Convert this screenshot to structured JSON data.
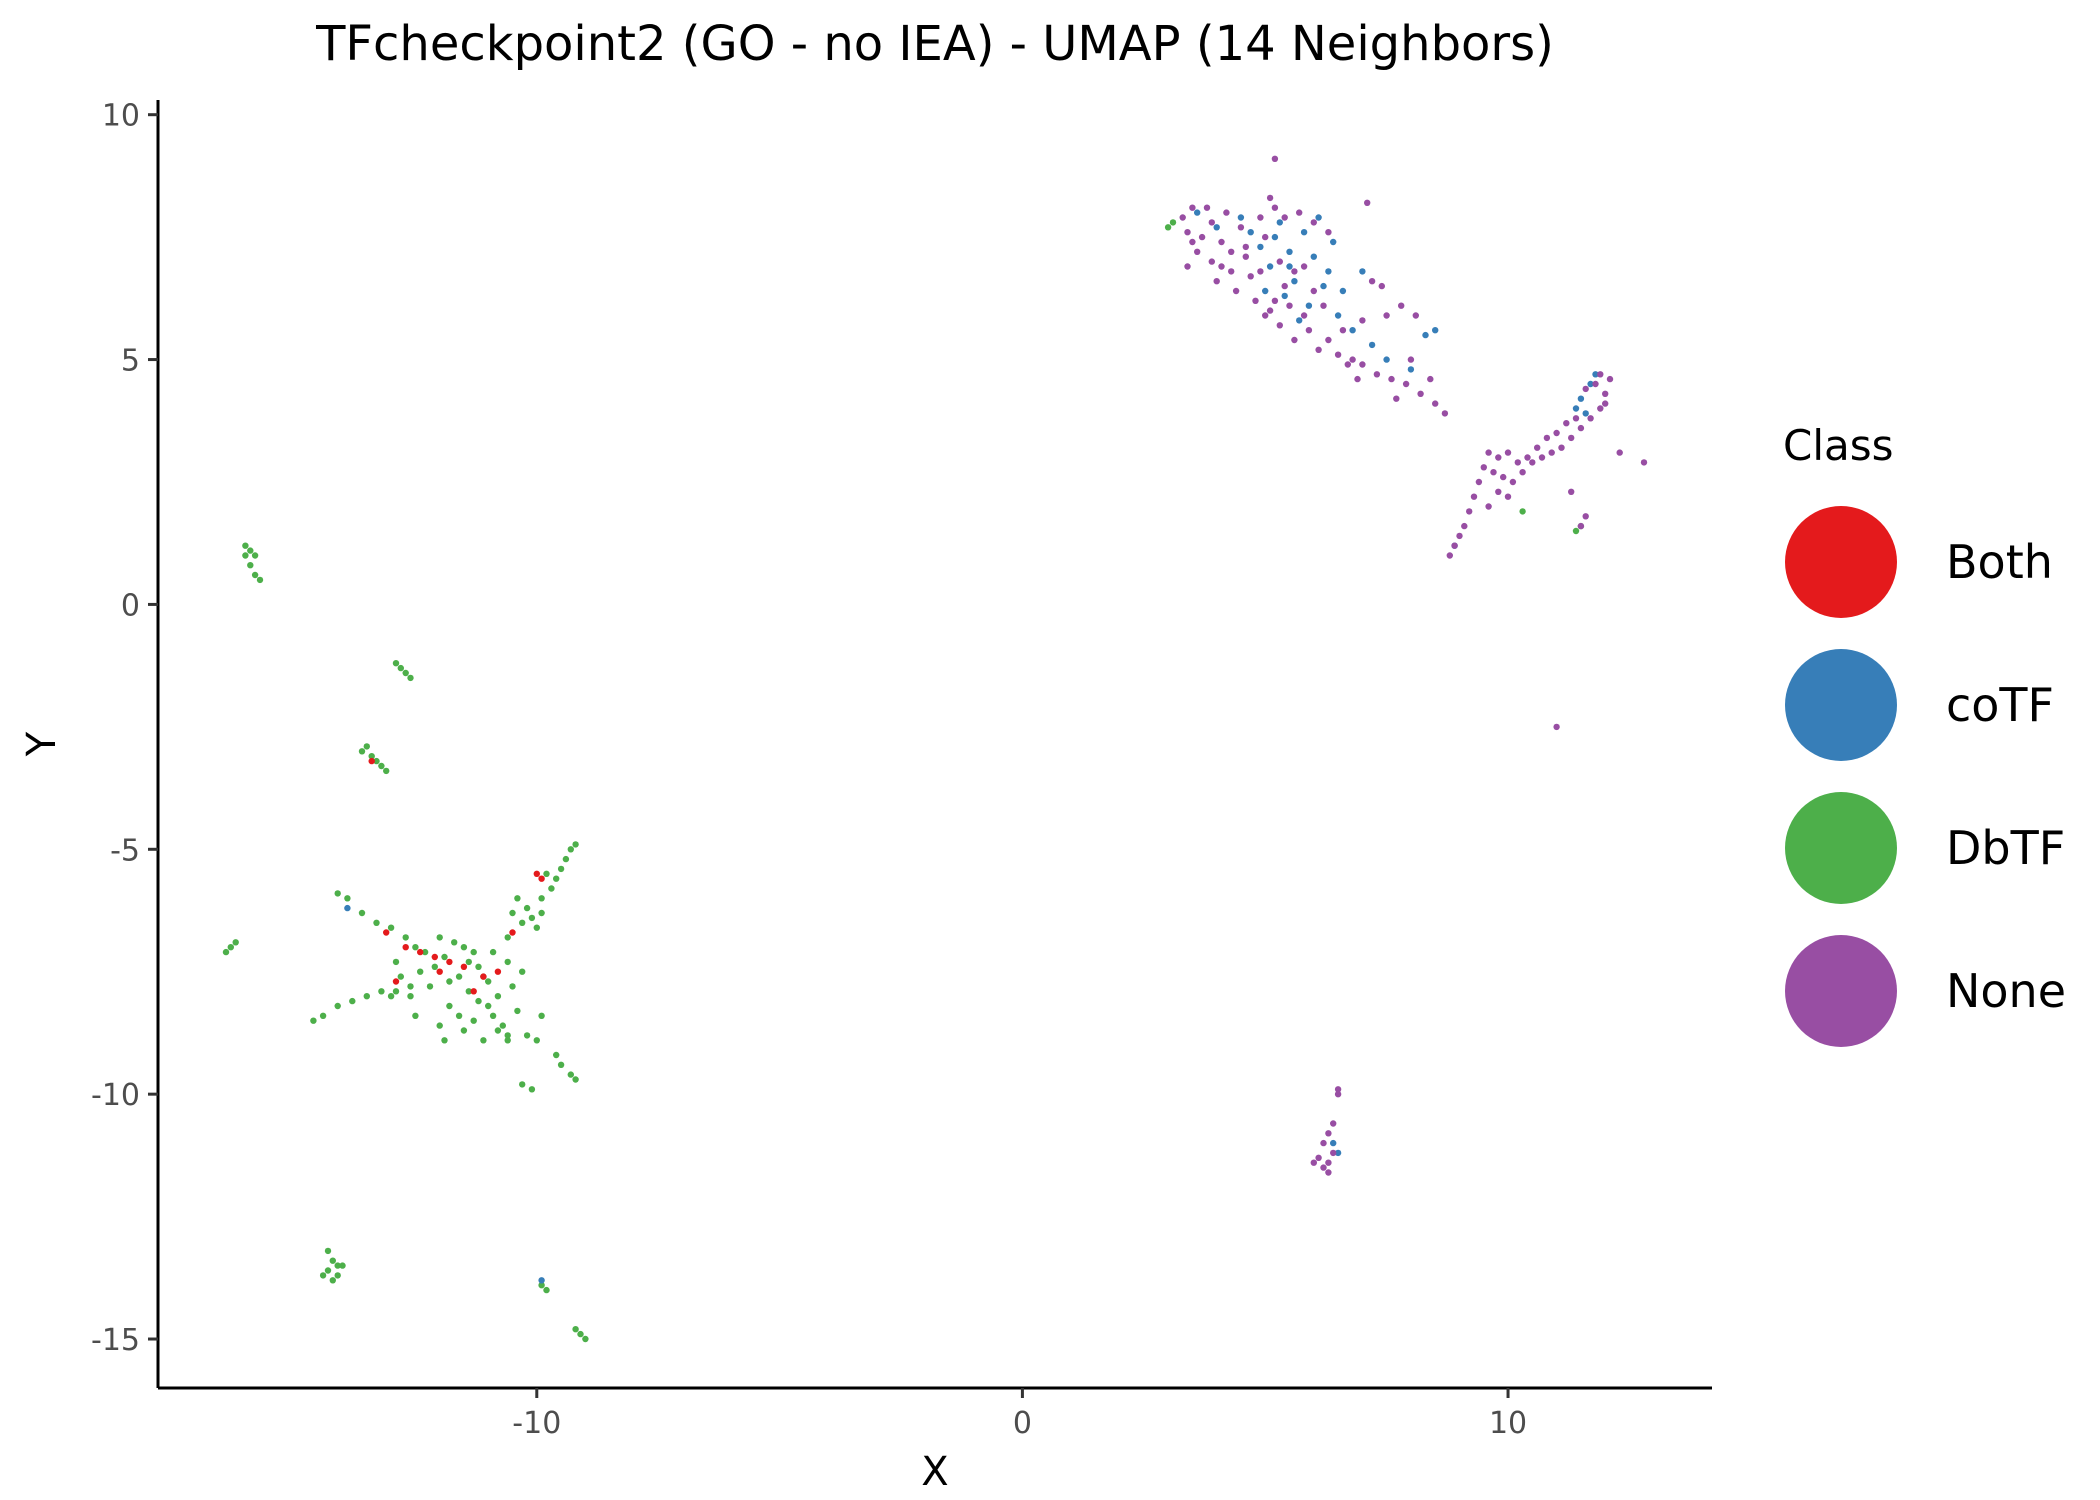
{
  "chart_data": {
    "type": "scatter",
    "title": "TFcheckpoint2 (GO - no IEA) - UMAP (14 Neighbors)",
    "xlabel": "X",
    "ylabel": "Y",
    "xlim": [
      -17.8,
      14.2
    ],
    "ylim": [
      -16.0,
      10.3
    ],
    "x_ticks": [
      -10,
      0,
      10
    ],
    "y_ticks": [
      10,
      5,
      0,
      -5,
      -10,
      -15
    ],
    "x_tick_labels": [
      "-10",
      "0",
      "10"
    ],
    "y_tick_labels": [
      "10",
      "5",
      "0",
      "-5",
      "-10",
      "-15"
    ],
    "grid": false,
    "legend": {
      "title": "Class",
      "position": "right",
      "entries": [
        {
          "label": "Both",
          "color": "#E41A1C"
        },
        {
          "label": "coTF",
          "color": "#377EB8"
        },
        {
          "label": "DbTF",
          "color": "#4DAF4A"
        },
        {
          "label": "None",
          "color": "#984EA3"
        }
      ]
    },
    "series": [
      {
        "name": "DbTF",
        "color": "#4DAF4A",
        "points": [
          [
            -11.6,
            -7.6
          ],
          [
            -11.4,
            -7.9
          ],
          [
            -11.2,
            -7.4
          ],
          [
            -11.8,
            -8.2
          ],
          [
            -11.3,
            -8.5
          ],
          [
            -11.0,
            -7.7
          ],
          [
            -11.9,
            -7.2
          ],
          [
            -12.2,
            -7.8
          ],
          [
            -10.8,
            -8.0
          ],
          [
            -11.5,
            -8.7
          ],
          [
            -11.1,
            -8.9
          ],
          [
            -12.4,
            -7.5
          ],
          [
            -10.6,
            -7.3
          ],
          [
            -12.0,
            -8.6
          ],
          [
            -11.7,
            -6.9
          ],
          [
            -10.9,
            -8.4
          ],
          [
            -12.6,
            -8.0
          ],
          [
            -11.3,
            -7.1
          ],
          [
            -10.5,
            -7.8
          ],
          [
            -12.3,
            -7.1
          ],
          [
            -11.0,
            -8.2
          ],
          [
            -11.6,
            -8.4
          ],
          [
            -10.7,
            -8.6
          ],
          [
            -12.1,
            -7.4
          ],
          [
            -11.4,
            -7.3
          ],
          [
            -10.4,
            -8.3
          ],
          [
            -12.8,
            -7.6
          ],
          [
            -11.8,
            -7.7
          ],
          [
            -11.2,
            -8.1
          ],
          [
            -10.3,
            -7.5
          ],
          [
            -12.5,
            -8.4
          ],
          [
            -11.5,
            -7.0
          ],
          [
            -10.9,
            -7.1
          ],
          [
            -10.2,
            -8.8
          ],
          [
            -12.9,
            -7.3
          ],
          [
            -11.9,
            -8.9
          ],
          [
            -11.1,
            -7.6
          ],
          [
            -10.6,
            -8.9
          ],
          [
            -13.0,
            -8.0
          ],
          [
            -12.0,
            -6.8
          ],
          [
            -10.0,
            -6.6
          ],
          [
            -10.1,
            -6.4
          ],
          [
            -10.2,
            -6.2
          ],
          [
            -10.4,
            -6.0
          ],
          [
            -9.9,
            -6.0
          ],
          [
            -9.7,
            -5.8
          ],
          [
            -9.6,
            -5.6
          ],
          [
            -9.5,
            -5.4
          ],
          [
            -9.4,
            -5.2
          ],
          [
            -9.3,
            -5.0
          ],
          [
            -9.2,
            -4.9
          ],
          [
            -9.8,
            -5.5
          ],
          [
            -10.3,
            -6.5
          ],
          [
            -10.5,
            -6.3
          ],
          [
            -10.6,
            -6.8
          ],
          [
            -9.9,
            -6.3
          ],
          [
            -12.7,
            -6.8
          ],
          [
            -13.0,
            -6.6
          ],
          [
            -13.3,
            -6.5
          ],
          [
            -13.6,
            -6.3
          ],
          [
            -13.9,
            -6.0
          ],
          [
            -14.1,
            -5.9
          ],
          [
            -12.5,
            -7.0
          ],
          [
            -12.6,
            -7.8
          ],
          [
            -12.9,
            -7.9
          ],
          [
            -13.2,
            -7.9
          ],
          [
            -13.5,
            -8.0
          ],
          [
            -13.8,
            -8.1
          ],
          [
            -14.1,
            -8.2
          ],
          [
            -14.4,
            -8.4
          ],
          [
            -14.6,
            -8.5
          ],
          [
            -16.3,
            -7.0
          ],
          [
            -16.4,
            -7.1
          ],
          [
            -16.2,
            -6.9
          ],
          [
            -10.8,
            -8.7
          ],
          [
            -10.6,
            -8.8
          ],
          [
            -10.0,
            -8.9
          ],
          [
            -9.9,
            -8.4
          ],
          [
            -9.6,
            -9.2
          ],
          [
            -9.5,
            -9.4
          ],
          [
            -9.3,
            -9.6
          ],
          [
            -9.2,
            -9.7
          ],
          [
            -10.3,
            -9.8
          ],
          [
            -10.1,
            -9.9
          ],
          [
            -16.0,
            1.2
          ],
          [
            -15.9,
            1.1
          ],
          [
            -15.8,
            1.0
          ],
          [
            -15.9,
            0.8
          ],
          [
            -15.8,
            0.6
          ],
          [
            -15.7,
            0.5
          ],
          [
            -16.0,
            1.0
          ],
          [
            -12.9,
            -1.2
          ],
          [
            -12.8,
            -1.3
          ],
          [
            -12.7,
            -1.4
          ],
          [
            -12.6,
            -1.5
          ],
          [
            -13.6,
            -3.0
          ],
          [
            -13.5,
            -2.9
          ],
          [
            -13.4,
            -3.1
          ],
          [
            -13.3,
            -3.2
          ],
          [
            -13.2,
            -3.3
          ],
          [
            -13.1,
            -3.4
          ],
          [
            -14.3,
            -13.2
          ],
          [
            -14.2,
            -13.4
          ],
          [
            -14.1,
            -13.5
          ],
          [
            -14.3,
            -13.6
          ],
          [
            -14.2,
            -13.8
          ],
          [
            -14.0,
            -13.5
          ],
          [
            -14.4,
            -13.7
          ],
          [
            -14.1,
            -13.7
          ],
          [
            -9.9,
            -13.9
          ],
          [
            -9.8,
            -14.0
          ],
          [
            -9.2,
            -14.8
          ],
          [
            -9.1,
            -14.9
          ],
          [
            -9.0,
            -15.0
          ],
          [
            3.1,
            7.8
          ],
          [
            3.0,
            7.7
          ],
          [
            11.4,
            1.5
          ],
          [
            11.5,
            1.6
          ],
          [
            10.3,
            1.9
          ]
        ]
      },
      {
        "name": "Both",
        "color": "#E41A1C",
        "points": [
          [
            -12.7,
            -7.0
          ],
          [
            -12.4,
            -7.1
          ],
          [
            -12.1,
            -7.2
          ],
          [
            -11.8,
            -7.3
          ],
          [
            -11.5,
            -7.4
          ],
          [
            -12.0,
            -7.5
          ],
          [
            -13.1,
            -6.7
          ],
          [
            -12.9,
            -7.7
          ],
          [
            -11.1,
            -7.6
          ],
          [
            -10.8,
            -7.5
          ],
          [
            -10.0,
            -5.5
          ],
          [
            -9.9,
            -5.6
          ],
          [
            -10.5,
            -6.7
          ],
          [
            -13.4,
            -3.2
          ],
          [
            -11.3,
            -7.9
          ]
        ]
      },
      {
        "name": "coTF",
        "color": "#377EB8",
        "points": [
          [
            4.9,
            7.3
          ],
          [
            5.2,
            7.5
          ],
          [
            5.5,
            7.2
          ],
          [
            5.8,
            7.6
          ],
          [
            5.1,
            6.9
          ],
          [
            5.6,
            6.6
          ],
          [
            6.0,
            7.1
          ],
          [
            5.3,
            7.8
          ],
          [
            4.7,
            7.6
          ],
          [
            6.2,
            6.5
          ],
          [
            5.9,
            6.1
          ],
          [
            5.4,
            6.3
          ],
          [
            6.3,
            6.8
          ],
          [
            6.6,
            6.4
          ],
          [
            5.7,
            5.8
          ],
          [
            4.5,
            7.9
          ],
          [
            3.6,
            8.0
          ],
          [
            4.0,
            7.7
          ],
          [
            6.1,
            7.9
          ],
          [
            5.0,
            6.4
          ],
          [
            6.8,
            5.6
          ],
          [
            7.2,
            5.3
          ],
          [
            7.5,
            5.0
          ],
          [
            8.0,
            4.8
          ],
          [
            8.3,
            5.5
          ],
          [
            8.5,
            5.6
          ],
          [
            6.5,
            5.9
          ],
          [
            7.0,
            6.8
          ],
          [
            6.4,
            7.4
          ],
          [
            5.5,
            6.9
          ],
          [
            11.5,
            4.2
          ],
          [
            11.7,
            4.5
          ],
          [
            11.8,
            4.7
          ],
          [
            11.6,
            3.9
          ],
          [
            11.4,
            4.0
          ],
          [
            6.4,
            -11.0
          ],
          [
            6.5,
            -11.2
          ],
          [
            8.9,
            1.2
          ],
          [
            -13.9,
            -6.2
          ],
          [
            -9.9,
            -13.8
          ]
        ]
      },
      {
        "name": "None",
        "color": "#984EA3",
        "points": [
          [
            3.3,
            7.9
          ],
          [
            3.5,
            8.1
          ],
          [
            3.4,
            7.6
          ],
          [
            3.7,
            7.5
          ],
          [
            3.6,
            7.2
          ],
          [
            3.9,
            7.0
          ],
          [
            4.1,
            7.4
          ],
          [
            4.3,
            6.8
          ],
          [
            4.0,
            6.6
          ],
          [
            4.6,
            7.1
          ],
          [
            4.4,
            6.4
          ],
          [
            4.8,
            6.2
          ],
          [
            4.7,
            6.7
          ],
          [
            5.0,
            5.9
          ],
          [
            5.2,
            6.2
          ],
          [
            5.3,
            5.7
          ],
          [
            5.5,
            6.1
          ],
          [
            5.6,
            5.4
          ],
          [
            5.9,
            5.6
          ],
          [
            6.1,
            5.2
          ],
          [
            6.3,
            5.4
          ],
          [
            6.5,
            5.1
          ],
          [
            6.8,
            5.0
          ],
          [
            7.0,
            4.9
          ],
          [
            7.3,
            4.7
          ],
          [
            7.6,
            4.6
          ],
          [
            7.9,
            4.5
          ],
          [
            8.2,
            4.3
          ],
          [
            8.5,
            4.1
          ],
          [
            8.7,
            3.9
          ],
          [
            3.8,
            8.1
          ],
          [
            4.2,
            8.0
          ],
          [
            4.5,
            7.7
          ],
          [
            4.9,
            7.9
          ],
          [
            5.1,
            8.3
          ],
          [
            5.2,
            8.1
          ],
          [
            5.4,
            7.9
          ],
          [
            5.7,
            8.0
          ],
          [
            6.0,
            7.8
          ],
          [
            6.3,
            7.6
          ],
          [
            5.0,
            7.5
          ],
          [
            4.6,
            7.3
          ],
          [
            5.3,
            7.0
          ],
          [
            5.6,
            6.8
          ],
          [
            5.8,
            6.9
          ],
          [
            6.0,
            6.4
          ],
          [
            6.2,
            6.1
          ],
          [
            5.4,
            6.5
          ],
          [
            4.9,
            6.8
          ],
          [
            4.3,
            7.2
          ],
          [
            3.5,
            7.4
          ],
          [
            3.9,
            7.8
          ],
          [
            4.1,
            6.9
          ],
          [
            5.1,
            6.0
          ],
          [
            5.8,
            5.9
          ],
          [
            6.6,
            5.6
          ],
          [
            7.0,
            5.8
          ],
          [
            7.5,
            5.9
          ],
          [
            7.2,
            6.6
          ],
          [
            7.4,
            6.5
          ],
          [
            7.8,
            6.1
          ],
          [
            8.1,
            5.9
          ],
          [
            5.2,
            9.1
          ],
          [
            7.1,
            8.2
          ],
          [
            3.4,
            6.9
          ],
          [
            6.9,
            4.6
          ],
          [
            7.7,
            4.2
          ],
          [
            8.4,
            4.6
          ],
          [
            8.0,
            5.0
          ],
          [
            6.7,
            4.9
          ],
          [
            9.6,
            3.1
          ],
          [
            9.8,
            3.0
          ],
          [
            10.0,
            3.1
          ],
          [
            10.2,
            2.9
          ],
          [
            10.4,
            3.0
          ],
          [
            10.6,
            3.2
          ],
          [
            10.8,
            3.4
          ],
          [
            11.0,
            3.5
          ],
          [
            11.2,
            3.7
          ],
          [
            11.4,
            3.8
          ],
          [
            9.5,
            2.8
          ],
          [
            9.4,
            2.5
          ],
          [
            9.3,
            2.2
          ],
          [
            9.2,
            1.9
          ],
          [
            9.1,
            1.6
          ],
          [
            9.0,
            1.4
          ],
          [
            8.9,
            1.2
          ],
          [
            8.8,
            1.0
          ],
          [
            9.7,
            2.7
          ],
          [
            9.9,
            2.6
          ],
          [
            10.1,
            2.5
          ],
          [
            10.3,
            2.7
          ],
          [
            10.5,
            2.9
          ],
          [
            10.7,
            3.0
          ],
          [
            10.9,
            3.1
          ],
          [
            11.1,
            3.2
          ],
          [
            11.3,
            3.4
          ],
          [
            11.5,
            3.6
          ],
          [
            11.7,
            3.8
          ],
          [
            11.9,
            4.0
          ],
          [
            12.0,
            4.3
          ],
          [
            11.8,
            4.5
          ],
          [
            12.1,
            4.6
          ],
          [
            11.6,
            4.4
          ],
          [
            11.9,
            4.7
          ],
          [
            12.0,
            4.1
          ],
          [
            12.8,
            2.9
          ],
          [
            12.3,
            3.1
          ],
          [
            11.6,
            1.8
          ],
          [
            11.5,
            1.6
          ],
          [
            9.8,
            2.3
          ],
          [
            10.0,
            2.2
          ],
          [
            9.6,
            2.0
          ],
          [
            11.3,
            2.3
          ],
          [
            11.0,
            -2.5
          ],
          [
            6.2,
            -11.5
          ],
          [
            6.1,
            -11.3
          ],
          [
            6.3,
            -11.6
          ],
          [
            6.4,
            -11.2
          ],
          [
            6.2,
            -11.0
          ],
          [
            6.3,
            -10.8
          ],
          [
            6.4,
            -10.6
          ],
          [
            6.5,
            -10.0
          ],
          [
            6.5,
            -9.9
          ],
          [
            6.0,
            -11.4
          ],
          [
            6.3,
            -11.4
          ]
        ]
      }
    ]
  }
}
